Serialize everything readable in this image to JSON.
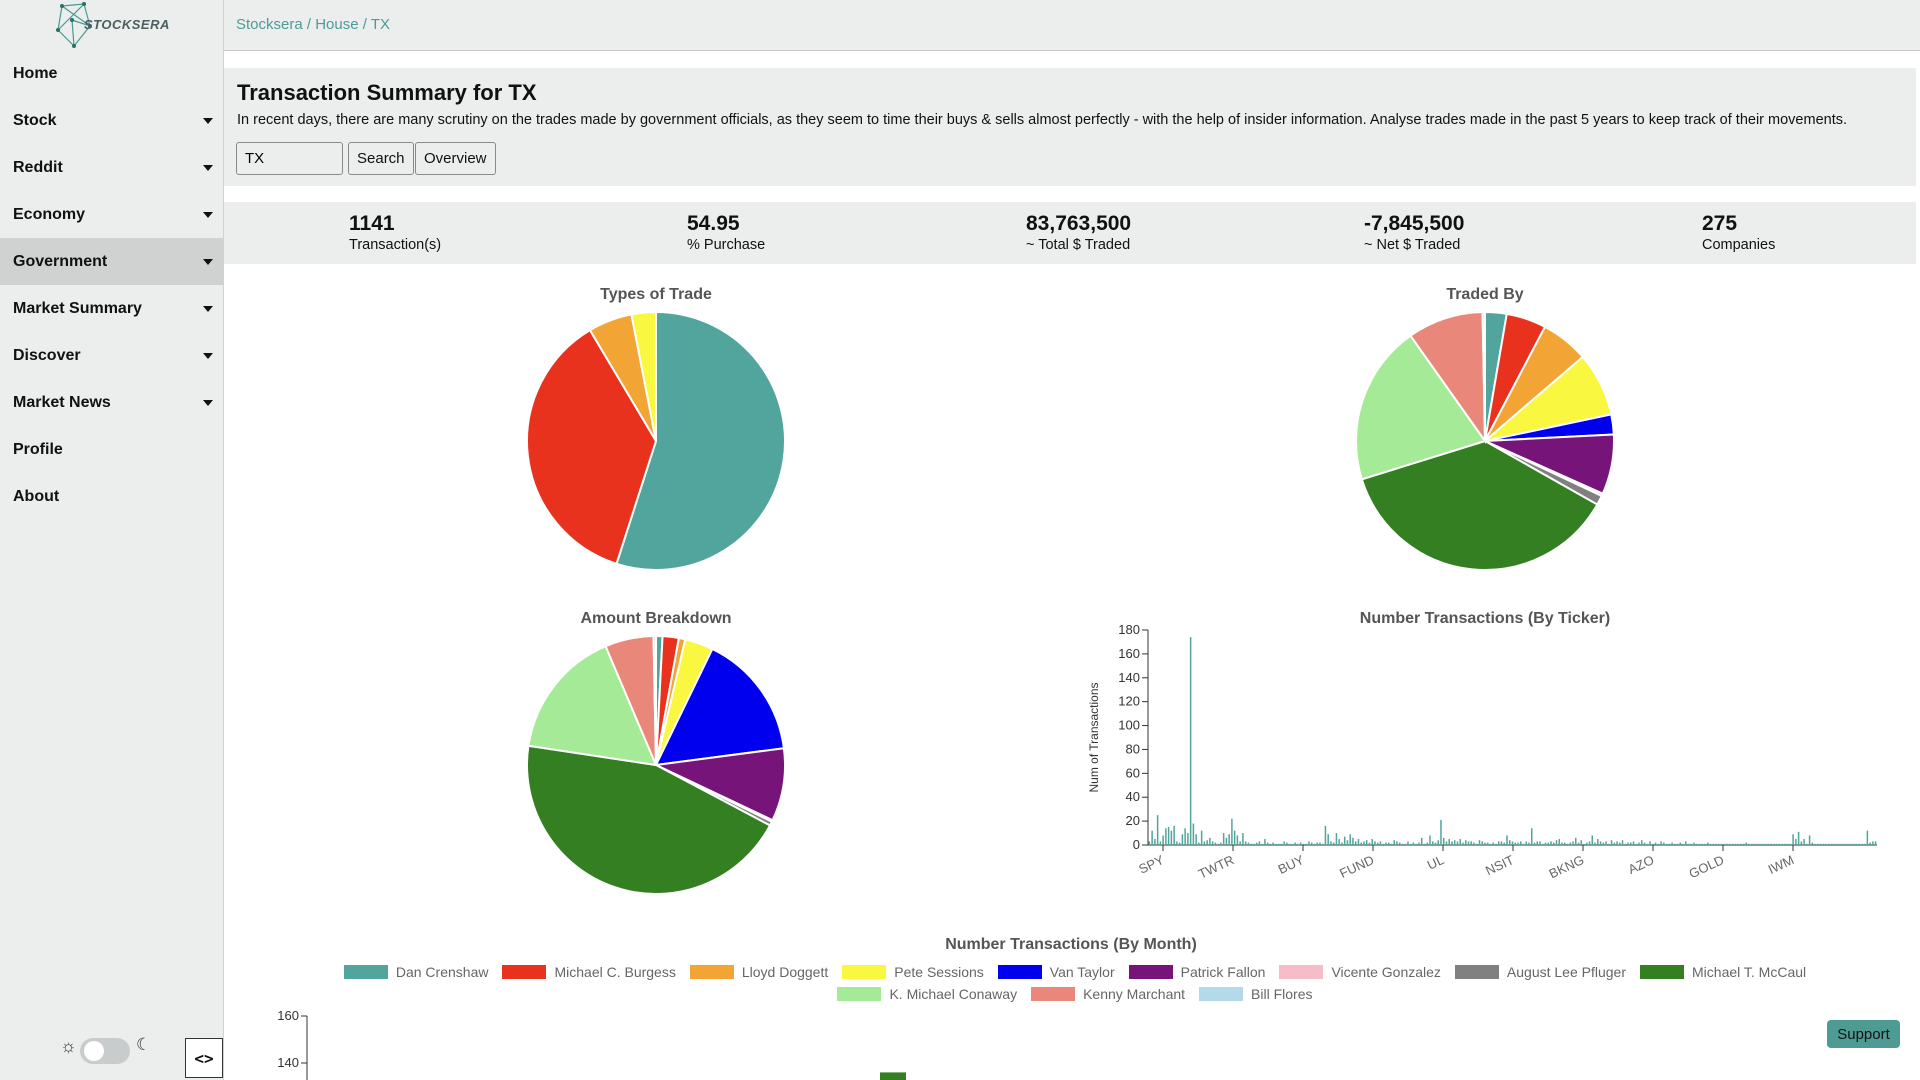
{
  "app": {
    "logo_text": "STOCKSERA"
  },
  "breadcrumb": "Stocksera / House / TX",
  "sidebar": {
    "items": [
      {
        "label": "Home",
        "has_caret": false,
        "active": false
      },
      {
        "label": "Stock",
        "has_caret": true,
        "active": false
      },
      {
        "label": "Reddit",
        "has_caret": true,
        "active": false
      },
      {
        "label": "Economy",
        "has_caret": true,
        "active": false
      },
      {
        "label": "Government",
        "has_caret": true,
        "active": true
      },
      {
        "label": "Market Summary",
        "has_caret": true,
        "active": false
      },
      {
        "label": "Discover",
        "has_caret": true,
        "active": false
      },
      {
        "label": "Market News",
        "has_caret": true,
        "active": false
      },
      {
        "label": "Profile",
        "has_caret": false,
        "active": false
      },
      {
        "label": "About",
        "has_caret": false,
        "active": false
      }
    ],
    "collapse_label": "<>"
  },
  "header": {
    "title": "Transaction Summary for TX",
    "description": "In recent days, there are many scrutiny on the trades made by government officials, as they seem to time their buys & sells almost perfectly - with the help of insider information. Analyse trades made in the past 5 years to keep track of their movements.",
    "search_value": "TX",
    "search_label": "Search",
    "overview_label": "Overview"
  },
  "stats": [
    {
      "value": "1141",
      "label": "Transaction(s)"
    },
    {
      "value": "54.95",
      "label": "% Purchase"
    },
    {
      "value": "83,763,500",
      "label": "~ Total $ Traded"
    },
    {
      "value": "-7,845,500",
      "label": "~ Net $ Traded"
    },
    {
      "value": "275",
      "label": "Companies"
    }
  ],
  "colors": {
    "accent": "#4e9b94",
    "people": {
      "Dan Crenshaw": "#51a59c",
      "Michael C. Burgess": "#e8321e",
      "Lloyd Doggett": "#f2a535",
      "Pete Sessions": "#f9f73f",
      "Van Taylor": "#0000ee",
      "Patrick Fallon": "#77147a",
      "Vicente Gonzalez": "#f6bcc8",
      "August Lee Pfluger": "#808080",
      "Michael T. McCaul": "#347f22",
      "K. Michael Conaway": "#a5ea97",
      "Kenny Marchant": "#e9887a",
      "Bill Flores": "#b4d9e8"
    }
  },
  "chart_data": [
    {
      "type": "pie",
      "title": "Types of Trade",
      "slices": [
        {
          "name": "",
          "value": 54.95,
          "color": "#51a59c"
        },
        {
          "name": "",
          "value": 36.5,
          "color": "#e8321e"
        },
        {
          "name": "",
          "value": 5.5,
          "color": "#f2a535"
        },
        {
          "name": "",
          "value": 3.05,
          "color": "#f9f73f"
        }
      ]
    },
    {
      "type": "pie",
      "title": "Traded By",
      "slices": [
        {
          "name": "Dan Crenshaw",
          "value": 2.7,
          "color": "#51a59c"
        },
        {
          "name": "Michael C. Burgess",
          "value": 5.0,
          "color": "#e8321e"
        },
        {
          "name": "Lloyd Doggett",
          "value": 6.0,
          "color": "#f2a535"
        },
        {
          "name": "Pete Sessions",
          "value": 8.0,
          "color": "#f9f73f"
        },
        {
          "name": "Van Taylor",
          "value": 2.5,
          "color": "#0000ee"
        },
        {
          "name": "Patrick Fallon",
          "value": 7.5,
          "color": "#77147a"
        },
        {
          "name": "Vicente Gonzalez",
          "value": 0.3,
          "color": "#f6bcc8"
        },
        {
          "name": "August Lee Pfluger",
          "value": 1.2,
          "color": "#808080"
        },
        {
          "name": "Michael T. McCaul",
          "value": 37.0,
          "color": "#347f22"
        },
        {
          "name": "K. Michael Conaway",
          "value": 20.0,
          "color": "#a5ea97"
        },
        {
          "name": "Kenny Marchant",
          "value": 9.5,
          "color": "#e9887a"
        },
        {
          "name": "Bill Flores",
          "value": 0.3,
          "color": "#b4d9e8"
        }
      ]
    },
    {
      "type": "pie",
      "title": "Amount Breakdown",
      "slices": [
        {
          "name": "Dan Crenshaw",
          "value": 0.8,
          "color": "#51a59c"
        },
        {
          "name": "Michael C. Burgess",
          "value": 2.0,
          "color": "#e8321e"
        },
        {
          "name": "Lloyd Doggett",
          "value": 0.8,
          "color": "#f2a535"
        },
        {
          "name": "Pete Sessions",
          "value": 3.5,
          "color": "#f9f73f"
        },
        {
          "name": "Van Taylor",
          "value": 15.5,
          "color": "#0000ee"
        },
        {
          "name": "Patrick Fallon",
          "value": 9.0,
          "color": "#77147a"
        },
        {
          "name": "Vicente Gonzalez",
          "value": 0.2,
          "color": "#f6bcc8"
        },
        {
          "name": "August Lee Pfluger",
          "value": 0.5,
          "color": "#808080"
        },
        {
          "name": "Michael T. McCaul",
          "value": 44.0,
          "color": "#347f22"
        },
        {
          "name": "K. Michael Conaway",
          "value": 16.0,
          "color": "#a5ea97"
        },
        {
          "name": "Kenny Marchant",
          "value": 6.0,
          "color": "#e9887a"
        },
        {
          "name": "Bill Flores",
          "value": 0.3,
          "color": "#b4d9e8"
        }
      ]
    },
    {
      "type": "bar",
      "title": "Number Transactions (By Ticker)",
      "ylabel": "Num of Transactions",
      "ylim": [
        0,
        180
      ],
      "yticks": [
        0,
        20,
        40,
        60,
        80,
        100,
        120,
        140,
        160,
        180
      ],
      "tick_labels": [
        "SPY",
        "TWTR",
        "BUY",
        "FUND",
        "UL",
        "NSIT",
        "BKNG",
        "AZO",
        "GOLD",
        "IWM"
      ],
      "color": "#51a59c",
      "values": [
        3,
        12,
        5,
        25,
        3,
        8,
        14,
        15,
        12,
        16,
        3,
        2,
        9,
        14,
        10,
        174,
        18,
        9,
        2,
        12,
        3,
        4,
        6,
        3,
        2,
        1,
        2,
        10,
        6,
        9,
        22,
        12,
        8,
        3,
        10,
        3,
        2,
        1,
        1,
        2,
        3,
        1,
        5,
        2,
        1,
        2,
        1,
        1,
        1,
        3,
        2,
        1,
        1,
        2,
        1,
        2,
        1,
        1,
        3,
        2,
        1,
        2,
        2,
        1,
        16,
        9,
        3,
        2,
        10,
        5,
        2,
        7,
        4,
        9,
        6,
        3,
        5,
        2,
        3,
        4,
        2,
        5,
        3,
        2,
        3,
        1,
        2,
        2,
        1,
        4,
        3,
        2,
        1,
        1,
        3,
        1,
        2,
        1,
        2,
        6,
        1,
        2,
        8,
        3,
        2,
        4,
        21,
        6,
        3,
        5,
        3,
        4,
        3,
        5,
        2,
        4,
        3,
        3,
        2,
        1,
        4,
        3,
        2,
        2,
        1,
        2,
        1,
        3,
        3,
        2,
        8,
        4,
        3,
        2,
        2,
        3,
        1,
        3,
        2,
        14,
        2,
        3,
        3,
        1,
        2,
        2,
        3,
        2,
        4,
        5,
        2,
        2,
        1,
        2,
        3,
        6,
        2,
        4,
        1,
        2,
        3,
        8,
        2,
        5,
        3,
        2,
        3,
        1,
        4,
        2,
        3,
        2,
        4,
        1,
        2,
        2,
        3,
        1,
        2,
        4,
        2,
        1,
        3,
        1,
        2,
        1,
        3,
        2,
        1,
        1,
        2,
        1,
        1,
        2,
        1,
        3,
        1,
        1,
        2,
        1,
        1,
        1,
        1,
        2,
        1,
        1,
        1,
        1,
        1,
        1,
        1,
        1,
        1,
        1,
        1,
        1,
        1,
        2,
        1,
        1,
        1,
        1,
        1,
        1,
        1,
        1,
        1,
        1,
        1,
        1,
        1,
        1,
        1,
        1,
        9,
        5,
        11,
        3,
        5,
        1,
        8,
        2,
        1,
        1,
        1,
        1,
        1,
        1,
        1,
        1,
        1,
        1,
        1,
        1,
        1,
        1,
        1,
        1,
        1,
        1,
        1,
        12,
        2,
        3,
        3
      ]
    },
    {
      "type": "bar",
      "title": "Number Transactions (By Month)",
      "ylim": [
        0,
        160
      ],
      "yticks": [
        140,
        160
      ],
      "series": [
        {
          "name": "Dan Crenshaw"
        },
        {
          "name": "Michael C. Burgess"
        },
        {
          "name": "Lloyd Doggett"
        },
        {
          "name": "Pete Sessions"
        },
        {
          "name": "Van Taylor"
        },
        {
          "name": "Patrick Fallon"
        },
        {
          "name": "Vicente Gonzalez"
        },
        {
          "name": "August Lee Pfluger"
        },
        {
          "name": "Michael T. McCaul"
        },
        {
          "name": "K. Michael Conaway"
        },
        {
          "name": "Kenny Marchant"
        },
        {
          "name": "Bill Flores"
        }
      ],
      "visible_bar": {
        "series": "Michael T. McCaul",
        "value": 136
      }
    }
  ],
  "support_label": "Support",
  "icons": {
    "sun": "sun-icon",
    "moon": "moon-icon"
  }
}
